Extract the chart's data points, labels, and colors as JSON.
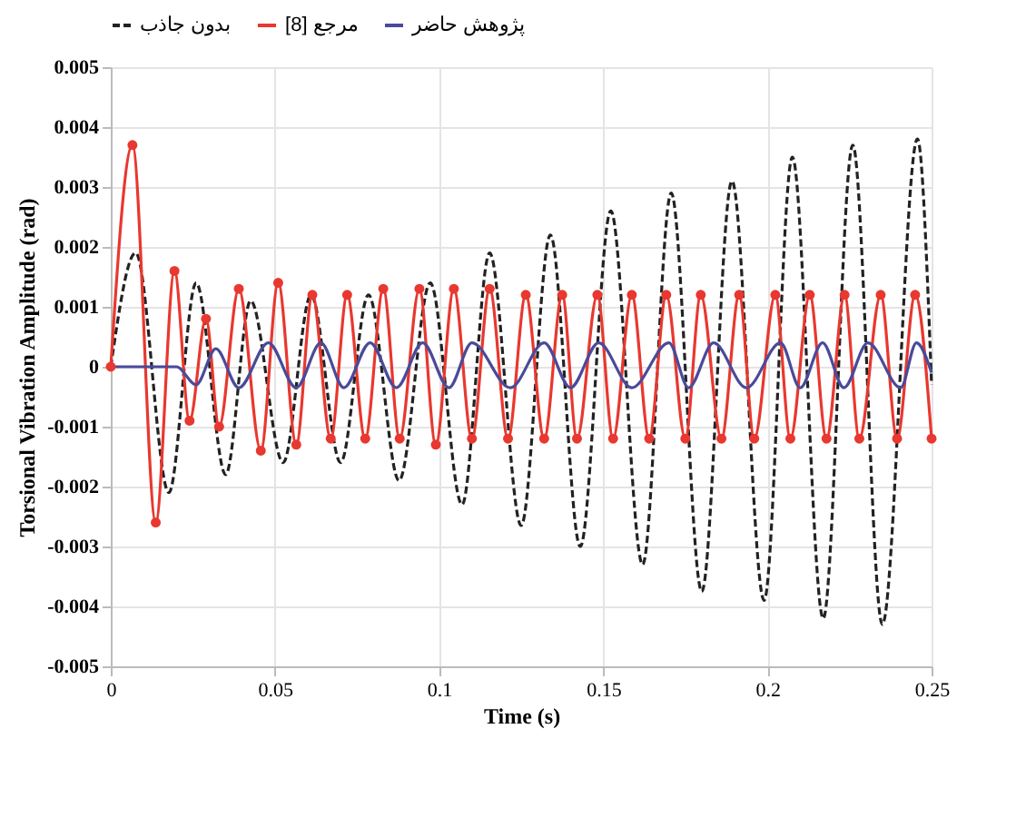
{
  "chart_data": {
    "type": "line",
    "xlabel": "Time (s)",
    "ylabel": "Torsional Vibration Amplitude  (rad)",
    "xlim": [
      0,
      0.25
    ],
    "xticks": [
      0,
      0.05,
      0.1,
      0.15,
      0.2,
      0.25
    ],
    "ylim": [
      -0.005,
      0.005
    ],
    "yticks": [
      -0.005,
      -0.004,
      -0.003,
      -0.002,
      -0.001,
      0,
      0.001,
      0.002,
      0.003,
      0.004,
      0.005
    ],
    "grid": true,
    "legend": "top",
    "series": [
      {
        "name": "بدون جاذب",
        "color": "#222222",
        "line_style": "dashed",
        "marker": "none",
        "x": [
          0,
          0.0076,
          0.0177,
          0.026,
          0.035,
          0.0426,
          0.0525,
          0.061,
          0.07,
          0.0785,
          0.0878,
          0.0973,
          0.107,
          0.1154,
          0.125,
          0.1339,
          0.143,
          0.1523,
          0.162,
          0.1707,
          0.18,
          0.1892,
          0.199,
          0.2076,
          0.217,
          0.226,
          0.235,
          0.2457,
          0.25
        ],
        "values": [
          0,
          0.0019,
          -0.0021,
          0.0014,
          -0.0018,
          0.0011,
          -0.0016,
          0.0012,
          -0.0016,
          0.0012,
          -0.0019,
          0.0014,
          -0.0023,
          0.0019,
          -0.00265,
          0.0022,
          -0.003,
          0.0026,
          -0.0033,
          0.0029,
          -0.00375,
          0.0031,
          -0.0039,
          0.0035,
          -0.0042,
          0.0037,
          -0.0043,
          0.0038,
          -0.0003
        ]
      },
      {
        "name": "مرجع [8]",
        "color": "#e8382f",
        "line_style": "solid",
        "marker": "circle",
        "x": [
          0,
          0.0066,
          0.0137,
          0.0194,
          0.024,
          0.029,
          0.033,
          0.039,
          0.0457,
          0.051,
          0.0565,
          0.0614,
          0.067,
          0.072,
          0.0775,
          0.083,
          0.088,
          0.094,
          0.099,
          0.1045,
          0.11,
          0.1154,
          0.121,
          0.1264,
          0.132,
          0.1375,
          0.142,
          0.1482,
          0.153,
          0.1587,
          0.164,
          0.1692,
          0.175,
          0.1797,
          0.186,
          0.1914,
          0.196,
          0.2024,
          0.207,
          0.2129,
          0.218,
          0.2235,
          0.228,
          0.2345,
          0.2395,
          0.245,
          0.25
        ],
        "values": [
          0,
          0.0037,
          -0.0026,
          0.0016,
          -0.0009,
          0.0008,
          -0.001,
          0.0013,
          -0.0014,
          0.0014,
          -0.0013,
          0.0012,
          -0.0012,
          0.0012,
          -0.0012,
          0.0013,
          -0.0012,
          0.0013,
          -0.0013,
          0.0013,
          -0.0012,
          0.0013,
          -0.0012,
          0.0012,
          -0.0012,
          0.0012,
          -0.0012,
          0.0012,
          -0.0012,
          0.0012,
          -0.0012,
          0.0012,
          -0.0012,
          0.0012,
          -0.0012,
          0.0012,
          -0.0012,
          0.0012,
          -0.0012,
          0.0012,
          -0.0012,
          0.0012,
          -0.0012,
          0.0012,
          -0.0012,
          0.0012,
          -0.0012
        ]
      },
      {
        "name": "پژوهش حاضر",
        "color": "#4a4a9a",
        "line_style": "solid",
        "marker": "none",
        "x": [
          0,
          0.02,
          0.026,
          0.032,
          0.039,
          0.048,
          0.0565,
          0.064,
          0.071,
          0.079,
          0.087,
          0.095,
          0.103,
          0.11,
          0.1217,
          0.132,
          0.14,
          0.1486,
          0.1587,
          0.17,
          0.176,
          0.1836,
          0.1936,
          0.204,
          0.21,
          0.2168,
          0.2233,
          0.2306,
          0.2406,
          0.2454,
          0.25
        ],
        "values": [
          0,
          0,
          -0.0003,
          0.0003,
          -0.00035,
          0.0004,
          -0.00035,
          0.0004,
          -0.00035,
          0.0004,
          -0.00035,
          0.0004,
          -0.00035,
          0.0004,
          -0.00035,
          0.0004,
          -0.00035,
          0.0004,
          -0.00035,
          0.0004,
          -0.00035,
          0.0004,
          -0.00035,
          0.0004,
          -0.00035,
          0.0004,
          -0.00035,
          0.0004,
          -0.00035,
          0.0004,
          -0.0001
        ]
      }
    ]
  }
}
